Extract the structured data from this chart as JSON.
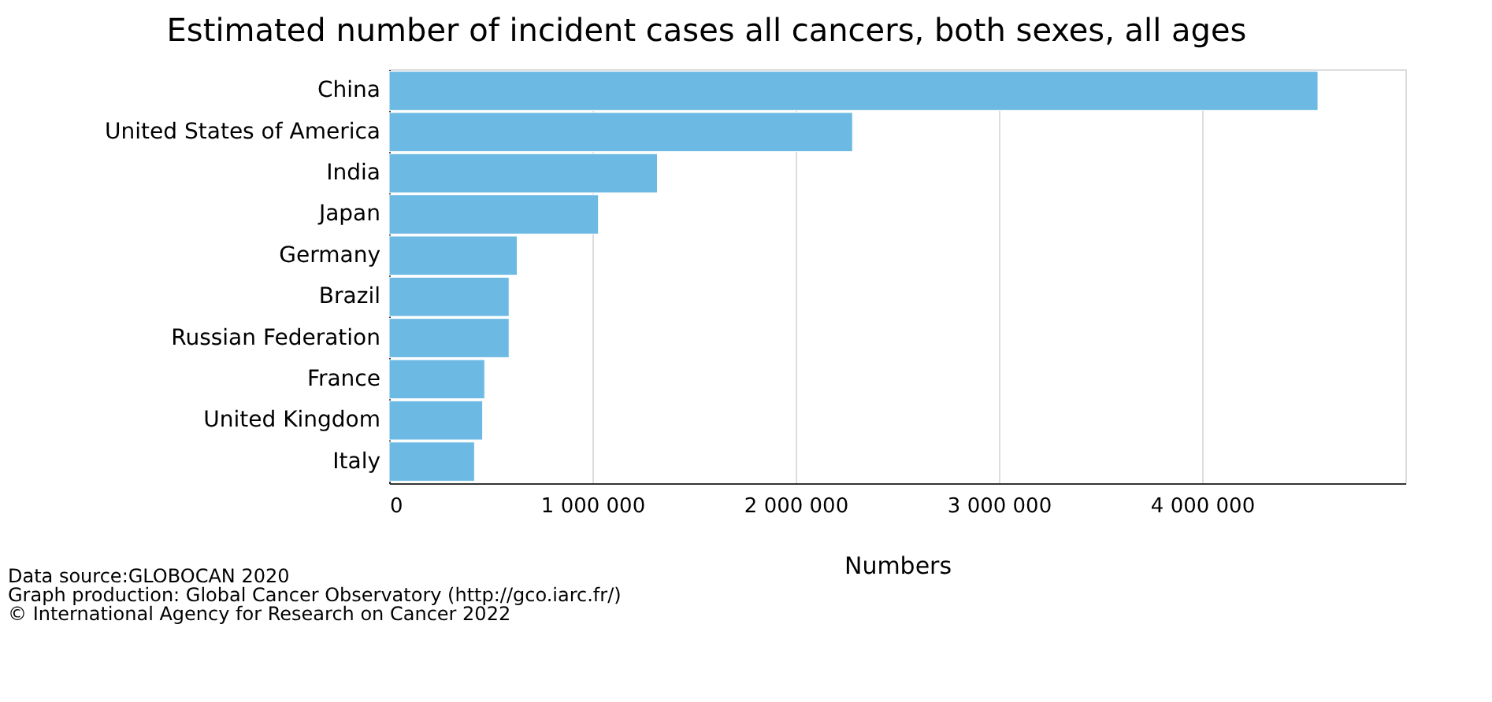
{
  "chart_data": {
    "type": "bar",
    "orientation": "horizontal",
    "title": "Estimated number of incident cases all cancers, both sexes, all ages",
    "xlabel": "Numbers",
    "categories": [
      "China",
      "United States of America",
      "India",
      "Japan",
      "Germany",
      "Brazil",
      "Russian Federation",
      "France",
      "United Kingdom",
      "Italy"
    ],
    "values": [
      4570000,
      2280000,
      1320000,
      1030000,
      630000,
      590000,
      590000,
      470000,
      460000,
      420000
    ],
    "color": "#6cb9e4",
    "xlim": [
      0,
      5000000
    ],
    "xticks": [
      {
        "value": 0,
        "label": "0"
      },
      {
        "value": 1000000,
        "label": "1 000 000"
      },
      {
        "value": 2000000,
        "label": "2 000 000"
      },
      {
        "value": 3000000,
        "label": "3 000 000"
      },
      {
        "value": 4000000,
        "label": "4 000 000"
      }
    ],
    "grid": "x",
    "annotations": [
      "Data source:GLOBOCAN 2020",
      "Graph production: Global Cancer Observatory (http://gco.iarc.fr/)",
      "© International Agency for Research on Cancer 2022"
    ]
  }
}
